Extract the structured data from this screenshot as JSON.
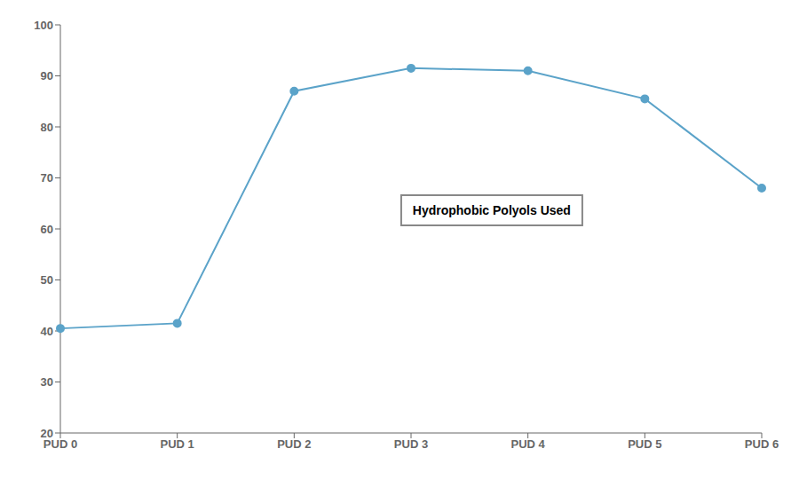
{
  "chart_data": {
    "type": "line",
    "categories": [
      "PUD 0",
      "PUD 1",
      "PUD 2",
      "PUD 3",
      "PUD 4",
      "PUD 5",
      "PUD 6"
    ],
    "values": [
      40.5,
      41.5,
      87.0,
      91.5,
      91.0,
      85.5,
      68.0
    ],
    "color": "#5BA3C9",
    "marker": "circle",
    "ylim": [
      20,
      100
    ],
    "yticks": [
      20,
      30,
      40,
      50,
      60,
      70,
      80,
      90,
      100
    ],
    "grid": false,
    "annotations": [
      "Hydrophobic Polyols Used"
    ]
  }
}
